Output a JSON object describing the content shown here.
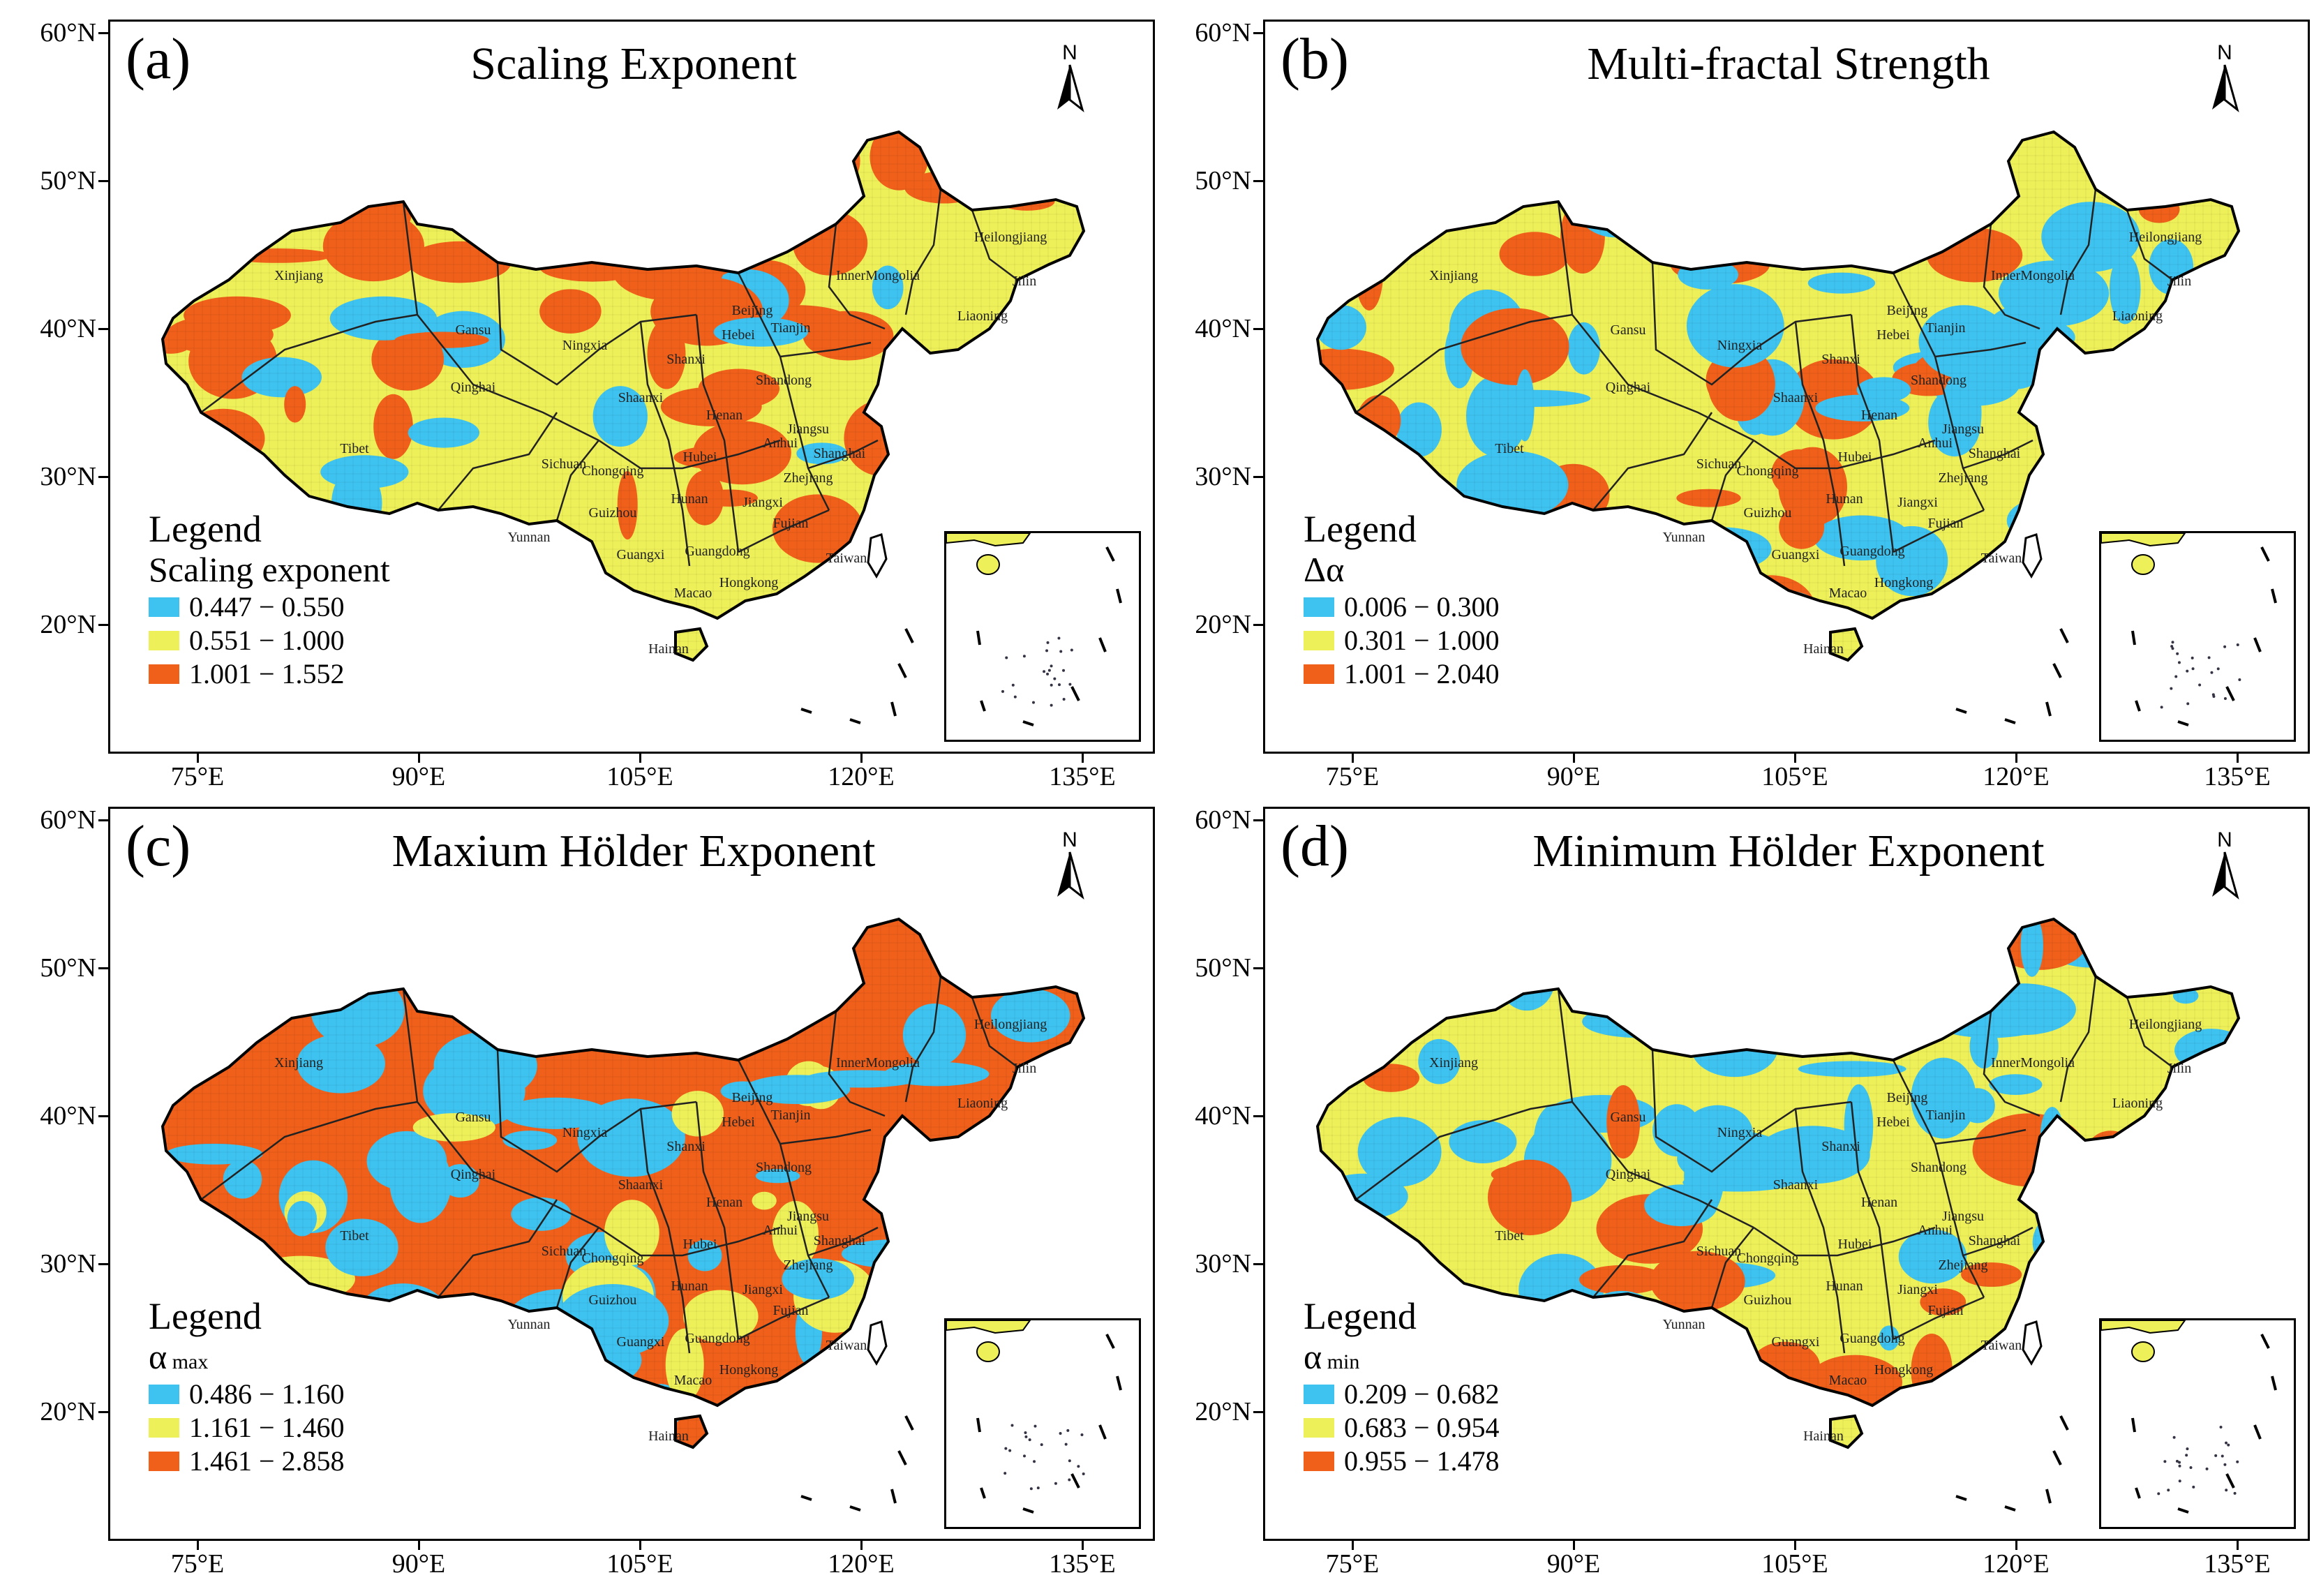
{
  "colors": {
    "low": "#3ec3f0",
    "mid": "#eef05a",
    "high": "#f0601a",
    "border": "#222222"
  },
  "lat_ticks": [
    "60°N",
    "50°N",
    "40°N",
    "30°N",
    "20°N"
  ],
  "lon_ticks": [
    "75°E",
    "90°E",
    "105°E",
    "120°E",
    "135°E"
  ],
  "north_label": "N",
  "panels": [
    {
      "letter": "(a)",
      "title": "Scaling Exponent",
      "legend_title": "Legend",
      "field": "Scaling exponent",
      "field_sub": "",
      "classes": [
        "0.447 − 0.550",
        "0.551 − 1.000",
        "1.001 − 1.552"
      ],
      "dominant": "mid",
      "secondary": "high"
    },
    {
      "letter": "(b)",
      "title": "Multi-fractal Strength",
      "legend_title": "Legend",
      "field": "Δα",
      "field_sub": "",
      "classes": [
        "0.006 − 0.300",
        "0.301 − 1.000",
        "1.001 − 2.040"
      ],
      "dominant": "mid",
      "secondary": "low"
    },
    {
      "letter": "(c)",
      "title": "Maxium Hölder Exponent",
      "legend_title": "Legend",
      "field": "α",
      "field_sub": "max",
      "classes": [
        "0.486 − 1.160",
        "1.161 − 1.460",
        "1.461 − 2.858"
      ],
      "dominant": "high",
      "secondary": "low"
    },
    {
      "letter": "(d)",
      "title": "Minimum Hölder Exponent",
      "legend_title": "Legend",
      "field": "α",
      "field_sub": "min",
      "classes": [
        "0.209 − 0.682",
        "0.683 − 0.954",
        "0.955 − 1.478"
      ],
      "dominant": "mid",
      "secondary": "low"
    }
  ],
  "provinces": [
    "Heilongjiang",
    "Jilin",
    "Liaoning",
    "InnerMongolia",
    "Xinjiang",
    "Gansu",
    "Qinghai",
    "Tibet",
    "Sichuan",
    "Yunnan",
    "Guizhou",
    "Guangxi",
    "Guangdong",
    "Hunan",
    "Hubei",
    "Henan",
    "Shanxi",
    "Shaanxi",
    "Hebei",
    "Beijing",
    "Tianjin",
    "Shandong",
    "Jiangsu",
    "Anhui",
    "Zhejiang",
    "Shanghai",
    "Jiangxi",
    "Fujian",
    "Taiwan",
    "Hongkong",
    "Macao",
    "Hainan",
    "Chongqing",
    "Ningxia"
  ]
}
